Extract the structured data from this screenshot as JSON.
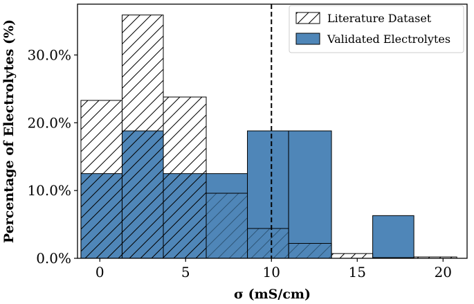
{
  "chart_data": {
    "type": "bar",
    "xlabel": "σ (mS/cm)",
    "ylabel": "Percentage of Electrolytes (%)",
    "xlim": [
      -1.3,
      21.4
    ],
    "ylim": [
      0,
      37.5
    ],
    "xticks": [
      0,
      5,
      10,
      15,
      20
    ],
    "xtick_labels": [
      "0",
      "5",
      "10",
      "15",
      "20"
    ],
    "yticks": [
      0,
      10,
      20,
      30
    ],
    "ytick_labels": [
      "0.0%",
      "10.0%",
      "20.0%",
      "30.0%"
    ],
    "bin_edges": [
      -1.1,
      1.3,
      3.7,
      6.2,
      8.6,
      11.0,
      13.5,
      15.9,
      18.3,
      20.8
    ],
    "threshold_x": 10,
    "legend_position": "top-right",
    "series": [
      {
        "name": "Literature Dataset",
        "style": "hatched",
        "values": [
          23.3,
          35.9,
          23.8,
          9.6,
          4.4,
          2.2,
          0.7,
          0.1,
          0.2
        ]
      },
      {
        "name": "Validated Electrolytes",
        "style": "filled",
        "color": "#4f86b8",
        "values": [
          12.5,
          18.8,
          12.5,
          12.5,
          18.8,
          18.8,
          0.0,
          6.3,
          0.0
        ]
      }
    ]
  }
}
